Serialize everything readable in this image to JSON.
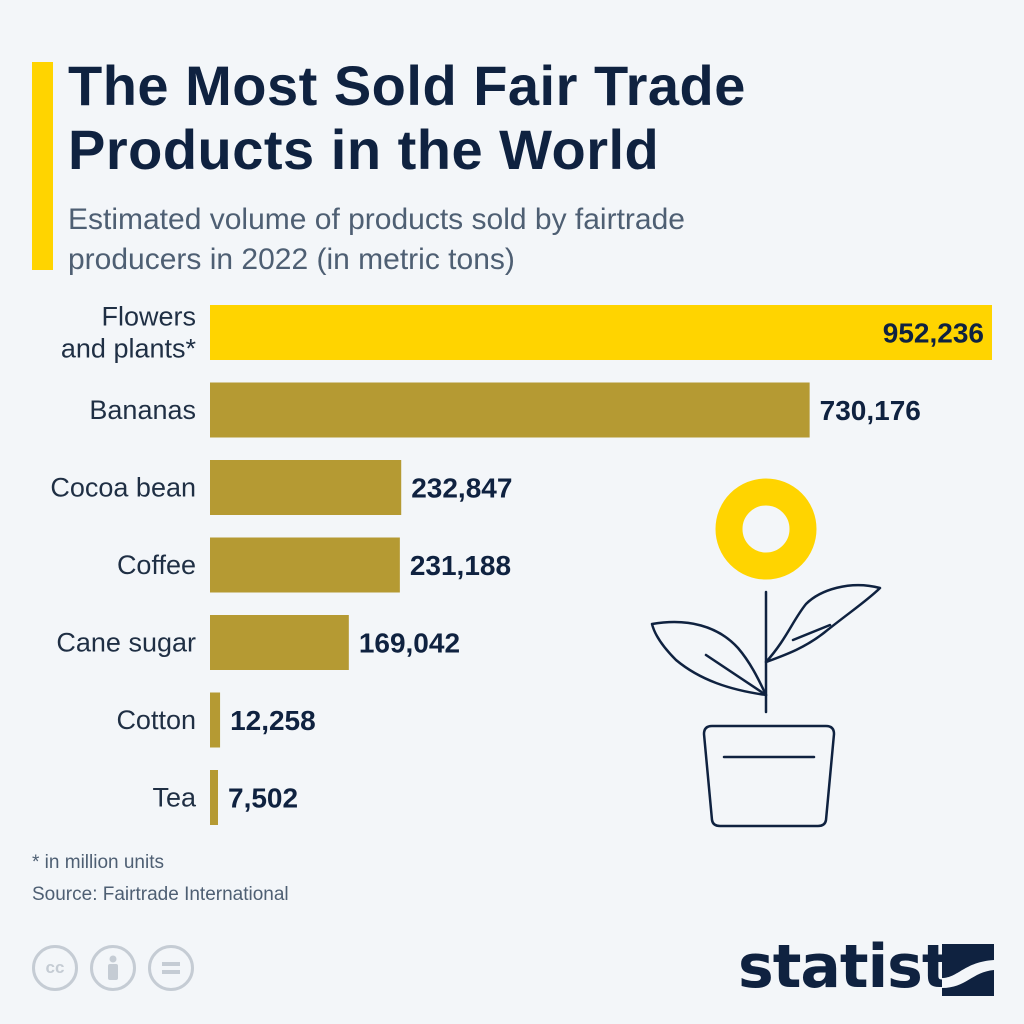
{
  "header": {
    "title_lines": [
      "The Most Sold Fair Trade",
      "Products in the World"
    ],
    "subtitle_lines": [
      "Estimated volume of products sold by fairtrade",
      "producers in 2022 (in metric tons)"
    ]
  },
  "colors": {
    "highlight_bar": "#ffd400",
    "bar": "#b59a33",
    "label": "#1f2f44",
    "value": "#0f2240",
    "accent": "#ffd400",
    "illustration_stroke": "#0f2240"
  },
  "chart_data": {
    "type": "bar",
    "orientation": "horizontal",
    "categories": [
      [
        "Flowers",
        "and plants*"
      ],
      [
        "Bananas"
      ],
      [
        "Cocoa bean"
      ],
      [
        "Coffee"
      ],
      [
        "Cane sugar"
      ],
      [
        "Cotton"
      ],
      [
        "Tea"
      ]
    ],
    "values": [
      952236,
      730176,
      232847,
      231188,
      169042,
      12258,
      7502
    ],
    "value_labels": [
      "952,236",
      "730,176",
      "232,847",
      "231,188",
      "169,042",
      "12,258",
      "7,502"
    ],
    "highlight_index": 0,
    "xlim": [
      0,
      952236
    ],
    "grid": false,
    "legend": false
  },
  "illustration": {
    "icon": "potted-plant-icon"
  },
  "footer": {
    "footnote": "* in million units",
    "source": "Source: Fairtrade International",
    "license_icons": [
      "cc-icon",
      "attribution-icon",
      "no-derivatives-icon"
    ],
    "brand": "statista"
  }
}
